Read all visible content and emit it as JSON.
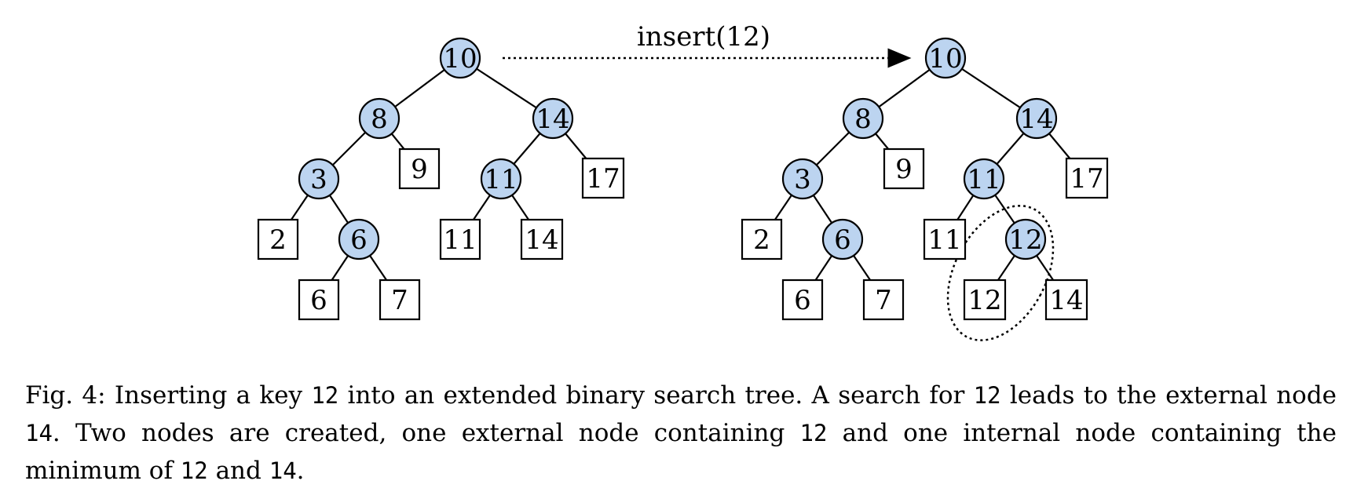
{
  "colors": {
    "internal_fill": "#bcd4f0",
    "stroke": "#000000",
    "external_fill": "#ffffff"
  },
  "arrow": {
    "label": "insert(12)"
  },
  "trees": {
    "before": {
      "internal": [
        "10",
        "8",
        "14",
        "3",
        "11",
        "6"
      ],
      "external": [
        "9",
        "17",
        "2",
        "11",
        "14",
        "6",
        "7"
      ]
    },
    "after": {
      "internal": [
        "10",
        "8",
        "14",
        "3",
        "11",
        "6",
        "12"
      ],
      "external": [
        "9",
        "17",
        "2",
        "11",
        "6",
        "7",
        "12",
        "14"
      ]
    }
  },
  "caption": {
    "label": "Fig. 4:",
    "p1": "Inserting a key",
    "k1": "12",
    "p2": "into an extended binary search tree. A search for",
    "k2": "12",
    "p3": "leads to the external node",
    "k3": "14",
    "p4": ". Two nodes are created, one external node containing",
    "k4": "12",
    "p5": "and one internal node containing the minimum of",
    "k5": "12",
    "p6": "and",
    "k6": "14",
    "p7": "."
  }
}
